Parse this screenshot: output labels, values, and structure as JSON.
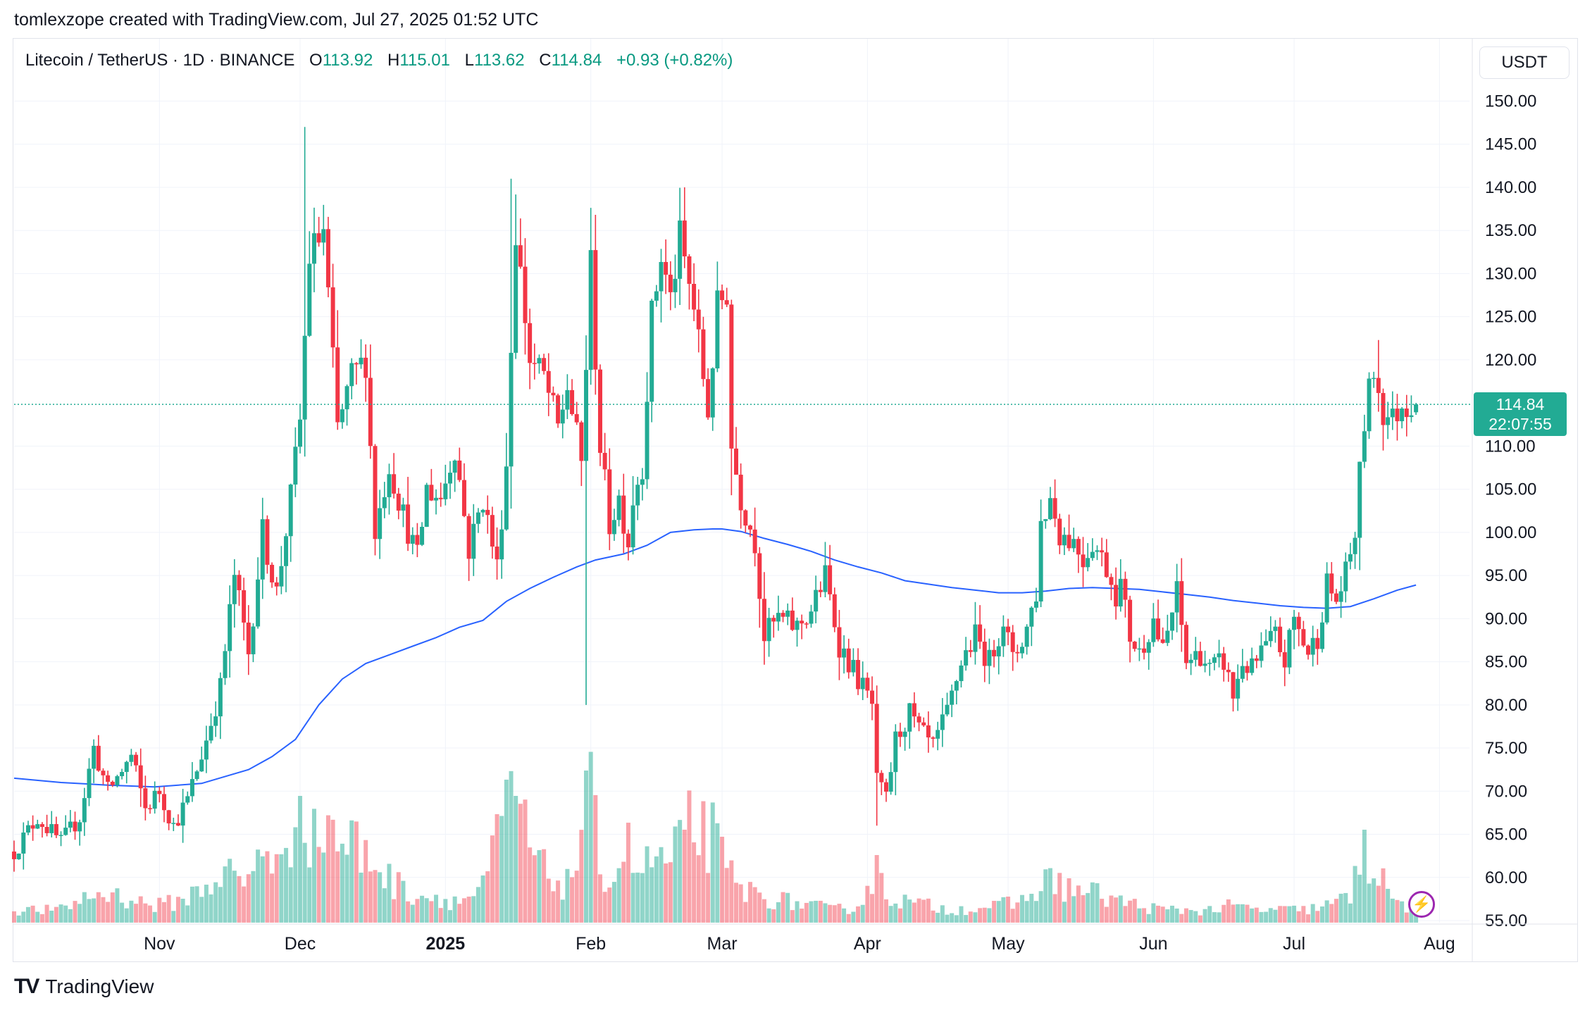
{
  "header": {
    "caption": "tomlexzope created with TradingView.com, Jul 27, 2025 01:52 UTC"
  },
  "legend": {
    "symbol": "Litecoin / TetherUS · 1D · BINANCE",
    "open_label": "O",
    "open": "113.92",
    "high_label": "H",
    "high": "115.01",
    "low_label": "L",
    "low": "113.62",
    "close_label": "C",
    "close": "114.84",
    "change": "+0.93 (+0.82%)"
  },
  "price_axis": {
    "currency": "USDT"
  },
  "last_price": {
    "value": "114.84",
    "countdown": "22:07:55"
  },
  "branding": {
    "name": "TradingView"
  },
  "chart_data": {
    "type": "candlestick",
    "title": "Litecoin / TetherUS · 1D · BINANCE",
    "ylim": [
      55,
      152
    ],
    "y_ticks": [
      "150.00",
      "145.00",
      "140.00",
      "135.00",
      "130.00",
      "125.00",
      "120.00",
      "110.00",
      "105.00",
      "100.00",
      "95.00",
      "90.00",
      "85.00",
      "80.00",
      "75.00",
      "70.00",
      "65.00",
      "60.00",
      "55.00"
    ],
    "x_ticks": [
      {
        "label": "Nov",
        "day": 31
      },
      {
        "label": "Dec",
        "day": 61
      },
      {
        "label": "2025",
        "day": 92,
        "bold": true
      },
      {
        "label": "Feb",
        "day": 123
      },
      {
        "label": "Mar",
        "day": 151
      },
      {
        "label": "Apr",
        "day": 182
      },
      {
        "label": "May",
        "day": 212
      },
      {
        "label": "Jun",
        "day": 243
      },
      {
        "label": "Jul",
        "day": 273
      },
      {
        "label": "Aug",
        "day": 304
      }
    ],
    "day_range": [
      0,
      308
    ],
    "first_date": "2024-10-01",
    "last_day": 299,
    "price_anchors": [
      [
        0,
        63
      ],
      [
        5,
        67
      ],
      [
        10,
        64
      ],
      [
        14,
        67
      ],
      [
        17,
        75
      ],
      [
        20,
        70
      ],
      [
        25,
        74
      ],
      [
        28,
        68
      ],
      [
        31,
        70
      ],
      [
        34,
        66
      ],
      [
        37,
        69
      ],
      [
        41,
        76
      ],
      [
        44,
        82
      ],
      [
        47,
        95
      ],
      [
        50,
        86
      ],
      [
        53,
        100
      ],
      [
        56,
        93
      ],
      [
        59,
        104
      ],
      [
        61,
        113
      ],
      [
        63,
        132
      ],
      [
        66,
        135
      ],
      [
        69,
        112
      ],
      [
        72,
        118
      ],
      [
        75,
        120
      ],
      [
        77,
        100
      ],
      [
        80,
        108
      ],
      [
        83,
        102
      ],
      [
        86,
        97
      ],
      [
        88,
        105
      ],
      [
        91,
        104
      ],
      [
        94,
        110
      ],
      [
        97,
        98
      ],
      [
        100,
        104
      ],
      [
        103,
        96
      ],
      [
        105,
        108
      ],
      [
        107,
        135
      ],
      [
        110,
        120
      ],
      [
        113,
        118
      ],
      [
        116,
        112
      ],
      [
        118,
        117
      ],
      [
        121,
        108
      ],
      [
        123,
        131
      ],
      [
        125,
        110
      ],
      [
        127,
        101
      ],
      [
        129,
        104
      ],
      [
        131,
        99
      ],
      [
        132,
        104
      ],
      [
        134,
        108
      ],
      [
        136,
        125
      ],
      [
        138,
        132
      ],
      [
        140,
        127
      ],
      [
        142,
        134
      ],
      [
        145,
        126
      ],
      [
        148,
        114
      ],
      [
        150,
        126
      ],
      [
        152,
        128
      ],
      [
        153,
        110
      ],
      [
        155,
        104
      ],
      [
        158,
        99
      ],
      [
        160,
        88
      ],
      [
        163,
        90
      ],
      [
        167,
        89
      ],
      [
        170,
        91
      ],
      [
        173,
        95
      ],
      [
        176,
        87
      ],
      [
        178,
        85
      ],
      [
        181,
        82
      ],
      [
        183,
        80
      ],
      [
        184,
        71
      ],
      [
        186,
        69
      ],
      [
        188,
        76
      ],
      [
        191,
        79
      ],
      [
        193,
        77
      ],
      [
        196,
        75
      ],
      [
        199,
        79
      ],
      [
        202,
        85
      ],
      [
        205,
        88
      ],
      [
        208,
        85
      ],
      [
        211,
        90
      ],
      [
        213,
        85
      ],
      [
        216,
        89
      ],
      [
        218,
        93
      ],
      [
        219,
        101
      ],
      [
        221,
        104
      ],
      [
        223,
        100
      ],
      [
        226,
        99
      ],
      [
        228,
        97
      ],
      [
        230,
        99
      ],
      [
        233,
        96
      ],
      [
        235,
        93
      ],
      [
        236,
        94
      ],
      [
        238,
        88
      ],
      [
        240,
        86
      ],
      [
        243,
        90
      ],
      [
        245,
        86
      ],
      [
        248,
        93
      ],
      [
        250,
        85
      ],
      [
        253,
        86
      ],
      [
        255,
        84
      ],
      [
        258,
        85
      ],
      [
        260,
        81
      ],
      [
        262,
        85
      ],
      [
        264,
        84
      ],
      [
        266,
        86
      ],
      [
        269,
        88
      ],
      [
        271,
        85
      ],
      [
        273,
        90
      ],
      [
        276,
        86
      ],
      [
        278,
        88
      ],
      [
        280,
        94
      ],
      [
        282,
        92
      ],
      [
        284,
        95
      ],
      [
        286,
        100
      ],
      [
        288,
        113
      ],
      [
        290,
        119
      ],
      [
        292,
        114
      ],
      [
        294,
        113
      ],
      [
        296,
        115
      ],
      [
        299,
        114.84
      ]
    ],
    "ma_line": [
      [
        0,
        71.5
      ],
      [
        10,
        71.0
      ],
      [
        20,
        70.7
      ],
      [
        30,
        70.5
      ],
      [
        40,
        70.9
      ],
      [
        50,
        72.5
      ],
      [
        55,
        74.0
      ],
      [
        60,
        76.0
      ],
      [
        65,
        80.0
      ],
      [
        70,
        83.0
      ],
      [
        75,
        84.8
      ],
      [
        80,
        85.8
      ],
      [
        85,
        86.8
      ],
      [
        90,
        87.8
      ],
      [
        95,
        89.0
      ],
      [
        100,
        89.8
      ],
      [
        105,
        92.0
      ],
      [
        110,
        93.5
      ],
      [
        115,
        94.8
      ],
      [
        120,
        96.0
      ],
      [
        124,
        96.8
      ],
      [
        130,
        97.5
      ],
      [
        135,
        98.5
      ],
      [
        140,
        100.0
      ],
      [
        145,
        100.3
      ],
      [
        149,
        100.4
      ],
      [
        151,
        100.4
      ],
      [
        155,
        100.1
      ],
      [
        160,
        99.3
      ],
      [
        165,
        98.6
      ],
      [
        170,
        97.8
      ],
      [
        175,
        96.8
      ],
      [
        180,
        96.0
      ],
      [
        185,
        95.3
      ],
      [
        190,
        94.4
      ],
      [
        195,
        94.0
      ],
      [
        200,
        93.6
      ],
      [
        205,
        93.3
      ],
      [
        210,
        93.0
      ],
      [
        215,
        93.0
      ],
      [
        220,
        93.2
      ],
      [
        225,
        93.5
      ],
      [
        230,
        93.6
      ],
      [
        235,
        93.5
      ],
      [
        240,
        93.4
      ],
      [
        245,
        93.1
      ],
      [
        250,
        92.8
      ],
      [
        255,
        92.5
      ],
      [
        260,
        92.1
      ],
      [
        265,
        91.8
      ],
      [
        270,
        91.5
      ],
      [
        275,
        91.3
      ],
      [
        280,
        91.2
      ],
      [
        285,
        91.4
      ],
      [
        290,
        92.3
      ],
      [
        295,
        93.3
      ],
      [
        299,
        93.9
      ]
    ],
    "volume_anchors": [
      [
        0,
        3
      ],
      [
        10,
        3
      ],
      [
        15,
        6
      ],
      [
        20,
        7
      ],
      [
        30,
        4
      ],
      [
        35,
        5
      ],
      [
        40,
        8
      ],
      [
        45,
        12
      ],
      [
        50,
        9
      ],
      [
        53,
        20
      ],
      [
        56,
        14
      ],
      [
        58,
        13
      ],
      [
        61,
        28
      ],
      [
        64,
        19
      ],
      [
        67,
        25
      ],
      [
        70,
        18
      ],
      [
        72,
        20
      ],
      [
        74,
        16
      ],
      [
        77,
        15
      ],
      [
        80,
        10
      ],
      [
        85,
        7
      ],
      [
        90,
        6
      ],
      [
        95,
        5
      ],
      [
        100,
        8
      ],
      [
        106,
        30
      ],
      [
        110,
        18
      ],
      [
        113,
        12
      ],
      [
        116,
        10
      ],
      [
        118,
        9
      ],
      [
        120,
        15
      ],
      [
        122,
        35
      ],
      [
        125,
        14
      ],
      [
        128,
        10
      ],
      [
        130,
        20
      ],
      [
        133,
        12
      ],
      [
        136,
        14
      ],
      [
        138,
        16
      ],
      [
        140,
        12
      ],
      [
        143,
        25
      ],
      [
        146,
        22
      ],
      [
        149,
        20
      ],
      [
        152,
        12
      ],
      [
        155,
        8
      ],
      [
        160,
        6
      ],
      [
        165,
        5
      ],
      [
        170,
        4
      ],
      [
        175,
        3
      ],
      [
        180,
        4
      ],
      [
        183,
        10
      ],
      [
        184,
        15
      ],
      [
        186,
        7
      ],
      [
        190,
        5
      ],
      [
        200,
        3
      ],
      [
        210,
        4
      ],
      [
        215,
        5
      ],
      [
        219,
        9
      ],
      [
        222,
        10
      ],
      [
        225,
        8
      ],
      [
        230,
        7
      ],
      [
        233,
        6
      ],
      [
        236,
        5
      ],
      [
        240,
        4
      ],
      [
        245,
        3
      ],
      [
        250,
        3
      ],
      [
        255,
        3
      ],
      [
        260,
        4
      ],
      [
        265,
        3
      ],
      [
        270,
        3
      ],
      [
        275,
        3
      ],
      [
        280,
        4
      ],
      [
        285,
        6
      ],
      [
        288,
        18
      ],
      [
        290,
        12
      ],
      [
        292,
        9
      ],
      [
        295,
        5
      ],
      [
        299,
        3
      ]
    ],
    "volume_spikes": [
      [
        61,
        30
      ],
      [
        122,
        36
      ],
      [
        143,
        22
      ],
      [
        184,
        16
      ],
      [
        288,
        22
      ],
      [
        107,
        30
      ]
    ],
    "colors": {
      "up": "#22ab94",
      "down": "#f23645",
      "ma": "#2962ff",
      "grid": "#f0f3fa",
      "axis_text": "#131722"
    }
  }
}
